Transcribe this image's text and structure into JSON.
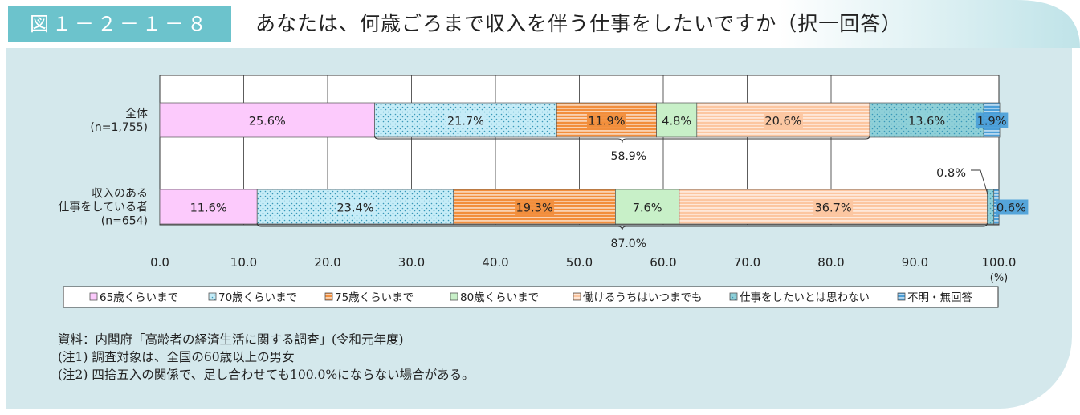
{
  "figure_label": "図１－２－１－８",
  "figure_title": "あなたは、何歳ごろまで収入を伴う仕事をしたいですか（択一回答）",
  "chart_data": {
    "type": "bar",
    "orientation": "horizontal-stacked-100",
    "categories": [
      {
        "line1": "全体",
        "line2": "(n=1,755)"
      },
      {
        "line1": "収入のある",
        "line2": "仕事をしている者",
        "line3": "(n=654)"
      }
    ],
    "series": [
      {
        "name": "65歳くらいまで",
        "values": [
          25.6,
          11.6
        ],
        "labels": [
          "25.6%",
          "11.6%"
        ],
        "color": "#fccafc",
        "pattern": "solid"
      },
      {
        "name": "70歳くらいまで",
        "values": [
          21.7,
          23.4
        ],
        "labels": [
          "21.7%",
          "23.4%"
        ],
        "color": "#c5ecf7",
        "pattern": "dots"
      },
      {
        "name": "75歳くらいまで",
        "values": [
          11.9,
          19.3
        ],
        "labels": [
          "11.9%",
          "19.3%"
        ],
        "color": "#f28e3c",
        "pattern": "hstripes"
      },
      {
        "name": "80歳くらいまで",
        "values": [
          4.8,
          7.6
        ],
        "labels": [
          "4.8%",
          "7.6%"
        ],
        "color": "#c8f0c8",
        "pattern": "solid"
      },
      {
        "name": "働けるうちはいつまでも",
        "values": [
          20.6,
          36.7
        ],
        "labels": [
          "20.6%",
          "36.7%"
        ],
        "color": "#fcc6a0",
        "pattern": "hstripes"
      },
      {
        "name": "仕事をしたいとは思わない",
        "values": [
          13.6,
          0.8
        ],
        "labels": [
          "13.6%",
          "0.8%"
        ],
        "color": "#8fd0d8",
        "pattern": "dots"
      },
      {
        "name": "不明・無回答",
        "values": [
          1.9,
          0.6
        ],
        "labels": [
          "1.9%",
          "0.6%"
        ],
        "color": "#4a9ed8",
        "pattern": "hstripes"
      }
    ],
    "brackets": [
      "58.9%",
      "87.0%"
    ],
    "xlim": [
      0,
      100
    ],
    "xticks": [
      "0.0",
      "10.0",
      "20.0",
      "30.0",
      "40.0",
      "50.0",
      "60.0",
      "70.0",
      "80.0",
      "90.0",
      "100.0"
    ],
    "xunit": "(%)",
    "grid": true,
    "legend_position": "bottom"
  },
  "notes": [
    "資料：内閣府「高齢者の経済生活に関する調査」(令和元年度)",
    "(注1) 調査対象は、全国の60歳以上の男女",
    "(注2) 四捨五入の関係で、足し合わせても100.0%にならない場合がある。"
  ]
}
